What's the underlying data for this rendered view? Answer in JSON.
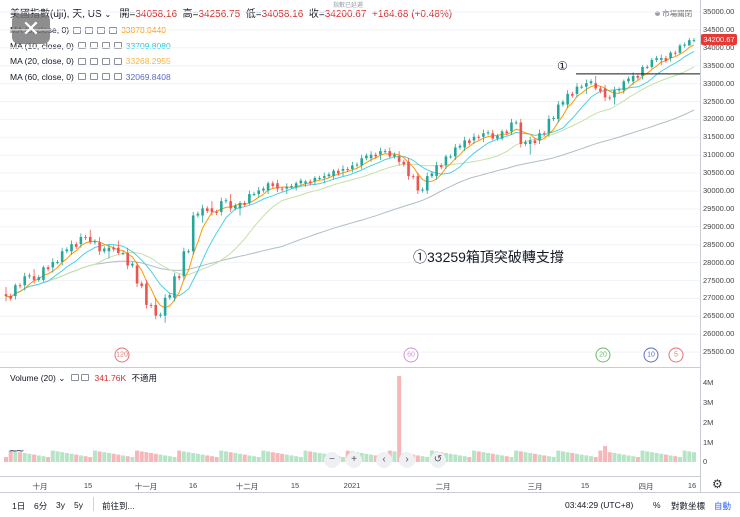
{
  "header": {
    "symbol": "美國指數(dji), 天, US",
    "open_label": "開=",
    "open_value": "34058.16",
    "high_label": "高=",
    "high_value": "34256.75",
    "low_label": "低=",
    "low_value": "34058.16",
    "close_label": "收=",
    "close_value": "34200.67",
    "change": "+164.68 (+0.48%)",
    "market_label": "市場關閉",
    "overlay_text": "指數已延遲"
  },
  "indicators": [
    {
      "label": "MA (5, close, 0)",
      "value": "33878.0440",
      "color": "#ff9800"
    },
    {
      "label": "MA (10, close, 0)",
      "value": "33709.8080",
      "color": "#26c6da"
    },
    {
      "label": "MA (20, close, 0)",
      "value": "33268.2955",
      "color": "#f5b642"
    },
    {
      "label": "MA (60, close, 0)",
      "value": "32069.8408",
      "color": "#5c6bc0"
    }
  ],
  "volume": {
    "label": "Volume (20)",
    "value": "341.76K",
    "note": "不適用"
  },
  "price_axis": [
    "35000.00",
    "34500.00",
    "34000.00",
    "33500.00",
    "33000.00",
    "32500.00",
    "32000.00",
    "31500.00",
    "31000.00",
    "30500.00",
    "30000.00",
    "29500.00",
    "29000.00",
    "28500.00",
    "28000.00",
    "27500.00",
    "27000.00",
    "26500.00",
    "26000.00",
    "25500.00"
  ],
  "last_price_tag": "34200.67",
  "volume_axis": [
    "4M",
    "3M",
    "2M",
    "1M",
    "0"
  ],
  "time_axis": [
    "十月",
    "15",
    "十一月",
    "16",
    "十二月",
    "15",
    "2021",
    "二月",
    "三月",
    "15",
    "四月",
    "16"
  ],
  "badges": [
    {
      "text": "120",
      "color": "#e57373"
    },
    {
      "text": "60",
      "color": "#ce93d8"
    },
    {
      "text": "20",
      "color": "#66bb6a"
    },
    {
      "text": "10",
      "color": "#5c6bc0"
    },
    {
      "text": "5",
      "color": "#e57373"
    }
  ],
  "annotation": {
    "marker": "①",
    "text": "①33259箱頂突破轉支撐",
    "level": 33259
  },
  "controls": {
    "minus": "−",
    "plus": "+",
    "left": "‹",
    "right": "›",
    "reset": "↺"
  },
  "bottom_bar": {
    "tf1": "1日",
    "tf2": "6分",
    "tf3": "3y",
    "tf4": "5y",
    "goto": "前往到...",
    "time": "03:44:29 (UTC+8)",
    "pct": "%",
    "log": "對數坐標",
    "auto": "自動"
  },
  "close_button": "✕",
  "colors": {
    "up": "#26a69a",
    "down": "#ef5350",
    "accent": "#d32f2f",
    "ma5": "#ff9800",
    "ma10": "#4dd0e1",
    "ma20": "#c5e1a5",
    "ma60": "#b0bec5"
  },
  "chart_data": {
    "type": "candlestick",
    "ylim": [
      25400,
      35100
    ],
    "ohlc_sample": [
      [
        27100,
        27300,
        26900,
        27050
      ],
      [
        27050,
        27400,
        26950,
        27350
      ],
      [
        27350,
        27700,
        27200,
        27600
      ],
      [
        27600,
        27800,
        27400,
        27500
      ],
      [
        27500,
        27900,
        27450,
        27850
      ],
      [
        27850,
        28100,
        27700,
        28000
      ],
      [
        28000,
        28400,
        27900,
        28300
      ],
      [
        28300,
        28600,
        28200,
        28500
      ],
      [
        28500,
        28800,
        28400,
        28700
      ],
      [
        28700,
        28900,
        28500,
        28550
      ],
      [
        28550,
        28700,
        28200,
        28300
      ],
      [
        28300,
        28500,
        28100,
        28400
      ],
      [
        28400,
        28600,
        28200,
        28250
      ],
      [
        28250,
        28400,
        27800,
        27900
      ],
      [
        27900,
        28000,
        27300,
        27400
      ],
      [
        27400,
        27500,
        26700,
        26800
      ],
      [
        26800,
        27000,
        26400,
        26500
      ],
      [
        26500,
        27100,
        26300,
        27000
      ],
      [
        27000,
        27700,
        26900,
        27600
      ],
      [
        27600,
        28400,
        27500,
        28300
      ],
      [
        28300,
        29400,
        28200,
        29300
      ],
      [
        29300,
        29600,
        29100,
        29500
      ],
      [
        29500,
        29700,
        29300,
        29400
      ],
      [
        29400,
        29800,
        29300,
        29700
      ],
      [
        29700,
        29900,
        29400,
        29500
      ],
      [
        29500,
        29700,
        29300,
        29650
      ],
      [
        29650,
        30000,
        29600,
        29900
      ],
      [
        29900,
        30100,
        29800,
        30000
      ],
      [
        30000,
        30250,
        29900,
        30200
      ],
      [
        30200,
        30300,
        29950,
        30050
      ],
      [
        30050,
        30200,
        29900,
        30100
      ],
      [
        30100,
        30250,
        30000,
        30200
      ],
      [
        30200,
        30300,
        30100,
        30250
      ],
      [
        30250,
        30400,
        30150,
        30350
      ],
      [
        30350,
        30500,
        30200,
        30400
      ],
      [
        30400,
        30600,
        30300,
        30550
      ],
      [
        30550,
        30700,
        30400,
        30600
      ],
      [
        30600,
        30800,
        30500,
        30700
      ],
      [
        30700,
        31000,
        30600,
        30900
      ],
      [
        30900,
        31100,
        30800,
        31000
      ],
      [
        31000,
        31200,
        30850,
        31100
      ],
      [
        31100,
        31200,
        30900,
        30950
      ],
      [
        30950,
        31100,
        30700,
        30800
      ],
      [
        30800,
        30900,
        30300,
        30400
      ],
      [
        30400,
        30500,
        29900,
        30000
      ],
      [
        30000,
        30500,
        29900,
        30400
      ],
      [
        30400,
        30800,
        30300,
        30700
      ],
      [
        30700,
        31000,
        30600,
        30950
      ],
      [
        30950,
        31300,
        30850,
        31200
      ],
      [
        31200,
        31500,
        31100,
        31400
      ],
      [
        31400,
        31600,
        31300,
        31500
      ],
      [
        31500,
        31700,
        31350,
        31600
      ],
      [
        31600,
        31700,
        31400,
        31450
      ],
      [
        31450,
        31700,
        31400,
        31650
      ],
      [
        31650,
        32000,
        31550,
        31900
      ],
      [
        31900,
        32000,
        31200,
        31300
      ],
      [
        31300,
        31500,
        31000,
        31400
      ],
      [
        31400,
        31700,
        31300,
        31600
      ],
      [
        31600,
        32100,
        31500,
        32000
      ],
      [
        32000,
        32500,
        31900,
        32400
      ],
      [
        32400,
        32800,
        32300,
        32700
      ],
      [
        32700,
        33000,
        32600,
        32900
      ],
      [
        32900,
        33100,
        32700,
        33000
      ],
      [
        33000,
        33200,
        32800,
        32850
      ],
      [
        32850,
        32950,
        32500,
        32600
      ],
      [
        32600,
        32900,
        32400,
        32800
      ],
      [
        32800,
        33100,
        32700,
        33050
      ],
      [
        33050,
        33300,
        32950,
        33200
      ],
      [
        33200,
        33500,
        33100,
        33450
      ],
      [
        33450,
        33700,
        33400,
        33650
      ],
      [
        33650,
        33800,
        33500,
        33700
      ],
      [
        33700,
        33900,
        33600,
        33850
      ],
      [
        33850,
        34100,
        33800,
        34050
      ],
      [
        34050,
        34260,
        34050,
        34200
      ]
    ]
  }
}
